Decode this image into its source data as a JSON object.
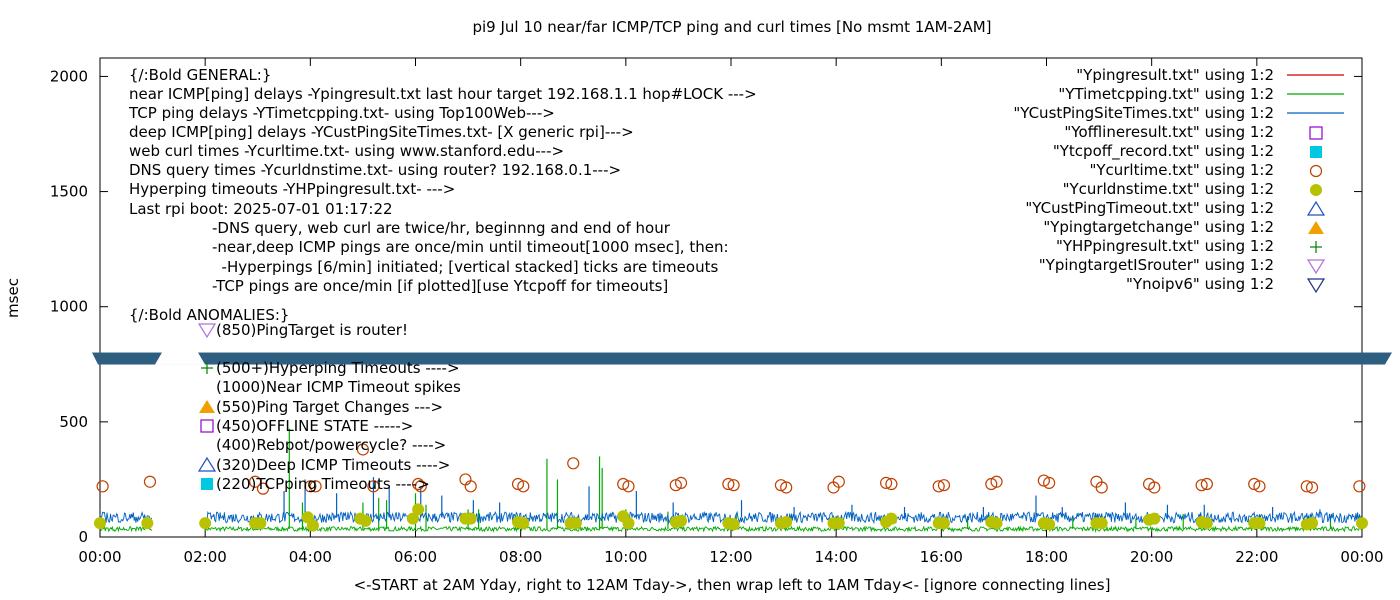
{
  "chart_data": {
    "type": "scatter",
    "title": "pi9 Jul 10  near/far ICMP/TCP ping and curl times [No msmt 1AM-2AM]",
    "xlabel": "<-START at 2AM Yday, right to 12AM Tday->, then wrap left to 1AM Tday<- [ignore connecting lines]",
    "ylabel": "msec",
    "xlim_hours": [
      0,
      24
    ],
    "ylim": [
      0,
      2080
    ],
    "y_ticks": [
      0,
      500,
      1000,
      1500,
      2000
    ],
    "x_ticks": [
      "00:00",
      "02:00",
      "04:00",
      "06:00",
      "08:00",
      "10:00",
      "12:00",
      "14:00",
      "16:00",
      "18:00",
      "20:00",
      "22:00",
      "00:00"
    ],
    "legend_position": "top-right",
    "break_band_msec": 775,
    "series": [
      {
        "name": "\"Ypingresult.txt\" using 1:2",
        "style": "line",
        "color": "#cc0000"
      },
      {
        "name": "\"YTimetcpping.txt\" using 1:2",
        "style": "line",
        "color": "#00aa00",
        "baseline_msec": 35,
        "spikes": [
          [
            3.6,
            470
          ],
          [
            3.85,
            150
          ],
          [
            5.0,
            150
          ],
          [
            5.3,
            170
          ],
          [
            5.45,
            160
          ],
          [
            6.0,
            190
          ],
          [
            6.2,
            140
          ],
          [
            7.0,
            120
          ],
          [
            7.2,
            120
          ],
          [
            8.5,
            340
          ],
          [
            8.7,
            250
          ],
          [
            9.5,
            350
          ],
          [
            9.55,
            300
          ],
          [
            10.0,
            120
          ],
          [
            10.8,
            110
          ],
          [
            12.1,
            100
          ],
          [
            16.5,
            90
          ],
          [
            18.5,
            90
          ],
          [
            19.7,
            80
          ],
          [
            20.6,
            100
          ],
          [
            23.4,
            90
          ]
        ]
      },
      {
        "name": "\"YCustPingSiteTimes.txt\" using 1:2",
        "style": "line",
        "color": "#0060c0",
        "baseline_msec": 85,
        "spikes": [
          [
            3.5,
            200
          ],
          [
            3.9,
            250
          ],
          [
            4.5,
            190
          ],
          [
            5.2,
            260
          ],
          [
            5.5,
            220
          ],
          [
            6.1,
            220
          ],
          [
            6.5,
            180
          ],
          [
            7.1,
            160
          ],
          [
            7.6,
            150
          ],
          [
            9.3,
            220
          ],
          [
            10.2,
            200
          ],
          [
            10.9,
            150
          ],
          [
            12.2,
            160
          ],
          [
            13.2,
            130
          ],
          [
            14.3,
            140
          ],
          [
            15.3,
            130
          ],
          [
            16.8,
            130
          ],
          [
            17.8,
            180
          ],
          [
            18.3,
            130
          ],
          [
            19.5,
            150
          ],
          [
            20.3,
            140
          ],
          [
            21.0,
            140
          ],
          [
            22.3,
            130
          ],
          [
            23.2,
            120
          ]
        ]
      },
      {
        "name": "\"Yofflineresult.txt\" using 1:2",
        "style": "open-square",
        "color": "#9400d3",
        "points": []
      },
      {
        "name": "\"Ytcpoff_record.txt\" using 1:2",
        "style": "filled-square",
        "color": "#00c8e0",
        "points": []
      },
      {
        "name": "\"Ycurltime.txt\" using 1:2",
        "style": "open-circle",
        "color": "#c04000",
        "points": [
          [
            0.05,
            220
          ],
          [
            0.95,
            240
          ],
          [
            2.95,
            240
          ],
          [
            3.1,
            210
          ],
          [
            4.0,
            220
          ],
          [
            4.1,
            220
          ],
          [
            5.0,
            380
          ],
          [
            5.2,
            220
          ],
          [
            6.05,
            230
          ],
          [
            6.1,
            220
          ],
          [
            6.95,
            250
          ],
          [
            7.05,
            220
          ],
          [
            7.95,
            230
          ],
          [
            8.05,
            220
          ],
          [
            9.0,
            320
          ],
          [
            9.95,
            230
          ],
          [
            10.05,
            220
          ],
          [
            10.95,
            225
          ],
          [
            11.05,
            235
          ],
          [
            11.95,
            230
          ],
          [
            12.05,
            225
          ],
          [
            12.95,
            225
          ],
          [
            13.05,
            215
          ],
          [
            13.95,
            215
          ],
          [
            14.05,
            240
          ],
          [
            14.95,
            235
          ],
          [
            15.05,
            230
          ],
          [
            15.95,
            220
          ],
          [
            16.05,
            225
          ],
          [
            16.95,
            230
          ],
          [
            17.05,
            240
          ],
          [
            17.95,
            245
          ],
          [
            18.05,
            235
          ],
          [
            18.95,
            240
          ],
          [
            19.05,
            215
          ],
          [
            19.95,
            230
          ],
          [
            20.05,
            215
          ],
          [
            20.95,
            225
          ],
          [
            21.05,
            230
          ],
          [
            21.95,
            230
          ],
          [
            22.05,
            220
          ],
          [
            22.95,
            220
          ],
          [
            23.05,
            215
          ],
          [
            23.95,
            220
          ]
        ]
      },
      {
        "name": "\"Ycurldnstime.txt\" using 1:2",
        "style": "filled-circle",
        "color": "#b8c200",
        "points": [
          [
            0.0,
            60
          ],
          [
            0.9,
            60
          ],
          [
            2.0,
            60
          ],
          [
            2.95,
            60
          ],
          [
            3.05,
            60
          ],
          [
            3.95,
            85
          ],
          [
            4.05,
            50
          ],
          [
            4.95,
            80
          ],
          [
            5.05,
            70
          ],
          [
            5.95,
            80
          ],
          [
            6.05,
            120
          ],
          [
            6.95,
            80
          ],
          [
            7.05,
            80
          ],
          [
            7.95,
            65
          ],
          [
            8.05,
            60
          ],
          [
            8.95,
            60
          ],
          [
            9.05,
            60
          ],
          [
            9.95,
            90
          ],
          [
            10.05,
            60
          ],
          [
            10.95,
            65
          ],
          [
            11.05,
            70
          ],
          [
            11.95,
            60
          ],
          [
            12.05,
            55
          ],
          [
            12.95,
            60
          ],
          [
            13.05,
            65
          ],
          [
            13.95,
            60
          ],
          [
            14.05,
            60
          ],
          [
            14.95,
            65
          ],
          [
            15.05,
            80
          ],
          [
            15.95,
            60
          ],
          [
            16.05,
            60
          ],
          [
            16.95,
            65
          ],
          [
            17.05,
            60
          ],
          [
            17.95,
            60
          ],
          [
            18.05,
            55
          ],
          [
            18.95,
            60
          ],
          [
            19.05,
            60
          ],
          [
            19.95,
            75
          ],
          [
            20.05,
            80
          ],
          [
            20.95,
            65
          ],
          [
            21.05,
            60
          ],
          [
            21.95,
            60
          ],
          [
            22.05,
            60
          ],
          [
            22.95,
            55
          ],
          [
            23.05,
            60
          ],
          [
            24.0,
            60
          ]
        ]
      },
      {
        "name": "\"YCustPingTimeout.txt\" using 1:2",
        "style": "open-triangle-up",
        "color": "#2050c0",
        "points": []
      },
      {
        "name": "\"Ypingtargetchange\" using 1:2",
        "style": "filled-triangle-up",
        "color": "#f0a000",
        "points": []
      },
      {
        "name": "\"YHPpingresult.txt\" using 1:2",
        "style": "plus",
        "color": "#008000",
        "points": []
      },
      {
        "name": "\"YpingtargetISrouter\" using 1:2",
        "style": "open-triangle-down",
        "color": "#b070e0",
        "points": []
      },
      {
        "name": "\"Ynoipv6\" using 1:2",
        "style": "open-triangle-down",
        "color": "#203080",
        "points": []
      }
    ]
  },
  "annotations": {
    "general_heading": "{/:Bold GENERAL:}",
    "general_lines": [
      "near ICMP[ping] delays -Ypingresult.txt last hour target 192.168.1.1 hop#LOCK --->",
      "TCP ping delays -YTimetcpping.txt- using Top100Web--->",
      "deep ICMP[ping] delays -YCustPingSiteTimes.txt- [X generic rpi]--->",
      "web curl times -Ycurltime.txt- using www.stanford.edu--->",
      "DNS query times -Ycurldnstime.txt- using router? 192.168.0.1--->",
      "Hyperping timeouts -YHPpingresult.txt- --->",
      "Last rpi boot: 2025-07-01 01:17:22"
    ],
    "notes": [
      "-DNS query, web curl are twice/hr, beginnng and end of hour",
      "-near,deep ICMP pings are once/min until timeout[1000 msec], then:",
      "  -Hyperpings [6/min] initiated; [vertical stacked] ticks are timeouts",
      "-TCP pings are once/min [if plotted][use Ytcpoff for timeouts]"
    ],
    "anomalies_heading": "{/:Bold ANOMALIES:}",
    "anomalies": [
      {
        "label": "(850)PingTarget is router!",
        "marker": "open-triangle-down",
        "color": "#b070e0"
      },
      {
        "label": "(500+)Hyperping Timeouts ---->",
        "marker": "plus",
        "color": "#008000"
      },
      {
        "label": "(1000)Near ICMP Timeout spikes",
        "marker": "none",
        "color": "#000000"
      },
      {
        "label": "(550)Ping Target Changes --->",
        "marker": "filled-triangle-up",
        "color": "#f0a000"
      },
      {
        "label": "(450)OFFLINE STATE ----->",
        "marker": "open-square",
        "color": "#9400d3"
      },
      {
        "label": "(400)Rebpot/powercycle? ---->",
        "marker": "none",
        "color": "#000000"
      },
      {
        "label": "(320)Deep ICMP Timeouts ---->",
        "marker": "open-triangle-up",
        "color": "#2050c0"
      },
      {
        "label": "(220)TCPping Timeouts ---->",
        "marker": "filled-square",
        "color": "#00c8e0"
      }
    ]
  }
}
